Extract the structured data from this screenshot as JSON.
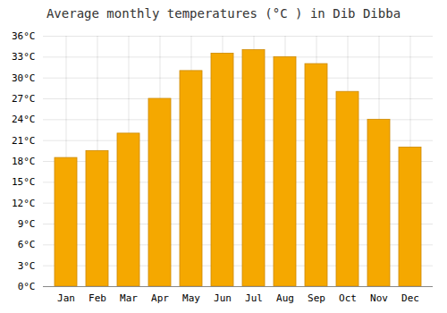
{
  "chart_data": {
    "type": "bar",
    "title": "Average monthly temperatures (°C ) in Dib Dibba",
    "categories": [
      "Jan",
      "Feb",
      "Mar",
      "Apr",
      "May",
      "Jun",
      "Jul",
      "Aug",
      "Sep",
      "Oct",
      "Nov",
      "Dec"
    ],
    "values": [
      18.5,
      19.5,
      22.0,
      27.0,
      31.0,
      33.5,
      34.0,
      33.0,
      32.0,
      28.0,
      24.0,
      20.0
    ],
    "color": "#F5A800",
    "ylim": [
      0,
      36
    ],
    "yticks": [
      {
        "value": 0,
        "label": "0°C"
      },
      {
        "value": 3,
        "label": "3°C"
      },
      {
        "value": 6,
        "label": "6°C"
      },
      {
        "value": 9,
        "label": "9°C"
      },
      {
        "value": 12,
        "label": "12°C"
      },
      {
        "value": 15,
        "label": "15°C"
      },
      {
        "value": 18,
        "label": "18°C"
      },
      {
        "value": 21,
        "label": "21°C"
      },
      {
        "value": 24,
        "label": "24°C"
      },
      {
        "value": 27,
        "label": "27°C"
      },
      {
        "value": 30,
        "label": "30°C"
      },
      {
        "value": 33,
        "label": "33°C"
      },
      {
        "value": 36,
        "label": "36°C"
      }
    ],
    "grid": true
  }
}
